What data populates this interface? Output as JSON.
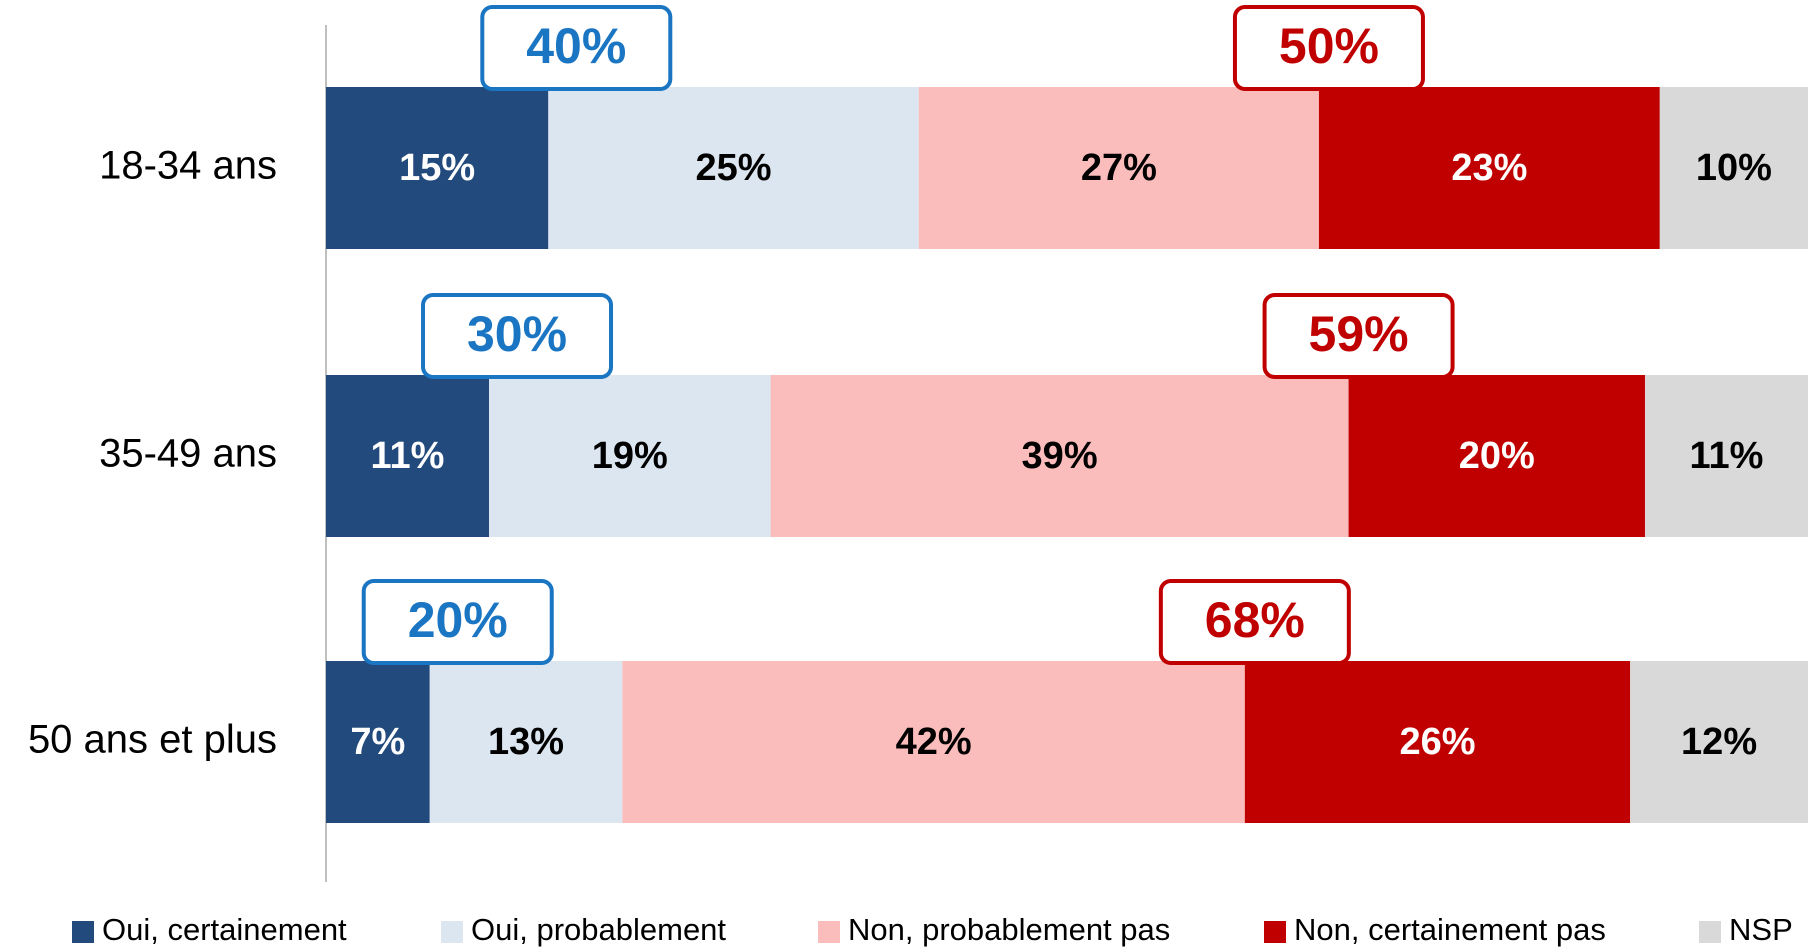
{
  "chart_data": {
    "type": "stacked_bar_horizontal",
    "categories": [
      "18-34 ans",
      "35-49 ans",
      "50 ans et plus"
    ],
    "xlim": [
      0,
      100
    ],
    "series": [
      {
        "name": "Oui, certainement",
        "color": "#234a7c",
        "values": [
          15,
          11,
          7
        ],
        "value_labels": [
          "15%",
          "11%",
          "7%"
        ]
      },
      {
        "name": "Oui, probablement",
        "color": "#dce6f1",
        "values": [
          25,
          19,
          13
        ],
        "value_labels": [
          "25%",
          "19%",
          "13%"
        ]
      },
      {
        "name": "Non, probablement pas",
        "color": "#fbbcbc",
        "values": [
          27,
          39,
          42
        ],
        "value_labels": [
          "27%",
          "39%",
          "42%"
        ]
      },
      {
        "name": "Non, certainement pas",
        "color": "#c00000",
        "values": [
          23,
          20,
          26
        ],
        "value_labels": [
          "23%",
          "20%",
          "26%"
        ]
      },
      {
        "name": "NSP",
        "color": "#d9d9d9",
        "values": [
          10,
          11,
          12
        ],
        "value_labels": [
          "10%",
          "11%",
          "12%"
        ]
      }
    ],
    "annotations": [
      {
        "color": "#1a75c2",
        "values": [
          40,
          30,
          20
        ],
        "value_labels": [
          "40%",
          "30%",
          "20%"
        ]
      },
      {
        "color": "#c00000",
        "values": [
          50,
          59,
          68
        ],
        "value_labels": [
          "50%",
          "59%",
          "68%"
        ]
      }
    ],
    "legend": "bottom"
  }
}
